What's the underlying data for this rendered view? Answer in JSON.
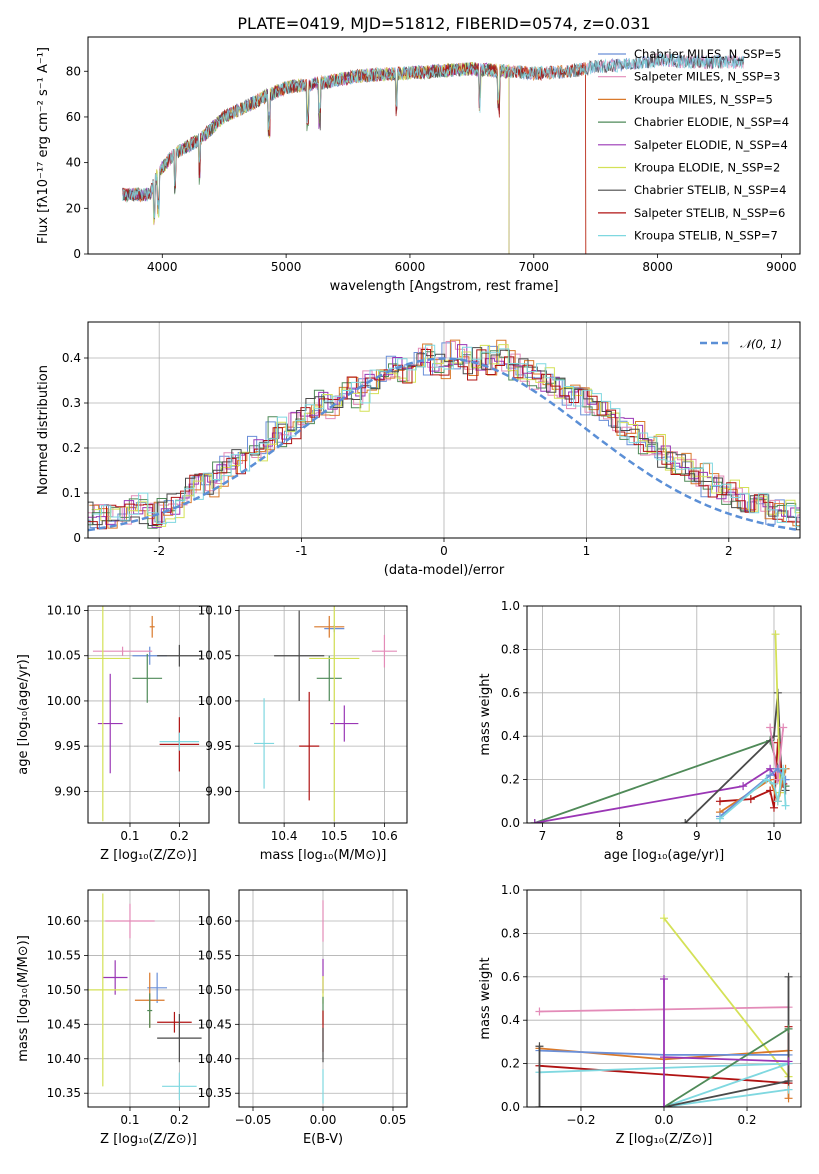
{
  "colors": {
    "chab_miles": "#6a8fd8",
    "salp_miles": "#e38bb8",
    "krou_miles": "#d9792b",
    "chab_elodie": "#4f8a58",
    "salp_elodie": "#9a36b5",
    "krou_elodie": "#d4e157",
    "chab_stelib": "#4a4a4a",
    "salp_stelib": "#b01313",
    "krou_stelib": "#7fd8e0",
    "normal": "#5b8fd6",
    "grid": "#b0b0b0"
  },
  "chart_data": [
    {
      "id": "spectrum",
      "type": "line",
      "title": "PLATE=0419, MJD=51812, FIBERID=0574, z=0.031",
      "xlabel": "wavelength [Angstrom, rest frame]",
      "ylabel": "Flux [fλ10⁻¹⁷ erg cm⁻² s⁻¹ A⁻¹]",
      "xlim": [
        3400,
        9150
      ],
      "ylim": [
        0,
        95
      ],
      "xticks": [
        4000,
        5000,
        6000,
        7000,
        8000,
        9000
      ],
      "yticks": [
        0,
        20,
        40,
        60,
        80
      ],
      "grid": false,
      "legend_position": "right",
      "series": [
        {
          "name": "Chabrier MILES, N_SSP=5",
          "color_key": "chab_miles",
          "start": 3680,
          "end": 8700
        },
        {
          "name": "Salpeter MILES, N_SSP=3",
          "color_key": "salp_miles",
          "start": 3680,
          "end": 8700
        },
        {
          "name": "Kroupa MILES, N_SSP=5",
          "color_key": "krou_miles",
          "start": 3680,
          "end": 7420
        },
        {
          "name": "Chabrier ELODIE, N_SSP=4",
          "color_key": "chab_elodie",
          "start": 3680,
          "end": 6800
        },
        {
          "name": "Salpeter ELODIE, N_SSP=4",
          "color_key": "salp_elodie",
          "start": 3680,
          "end": 6800
        },
        {
          "name": "Kroupa ELODIE, N_SSP=2",
          "color_key": "krou_elodie",
          "start": 3900,
          "end": 6800
        },
        {
          "name": "Chabrier STELIB, N_SSP=4",
          "color_key": "chab_stelib",
          "start": 3680,
          "end": 8700
        },
        {
          "name": "Salpeter STELIB, N_SSP=6",
          "color_key": "salp_stelib",
          "start": 3680,
          "end": 7420
        },
        {
          "name": "Kroupa STELIB, N_SSP=7",
          "color_key": "krou_stelib",
          "start": 3680,
          "end": 8700
        }
      ],
      "continuum": [
        [
          3680,
          26
        ],
        [
          3900,
          26
        ],
        [
          3960,
          35
        ],
        [
          4100,
          44
        ],
        [
          4300,
          50
        ],
        [
          4500,
          60
        ],
        [
          4800,
          68
        ],
        [
          5000,
          73
        ],
        [
          5300,
          75
        ],
        [
          5600,
          78
        ],
        [
          5900,
          79
        ],
        [
          6200,
          80
        ],
        [
          6500,
          81
        ],
        [
          6800,
          80
        ],
        [
          7000,
          79
        ],
        [
          7300,
          80
        ],
        [
          7500,
          82
        ],
        [
          7800,
          83
        ],
        [
          8000,
          85
        ],
        [
          8300,
          84
        ],
        [
          8700,
          84
        ]
      ]
    },
    {
      "id": "residual_hist",
      "type": "bar",
      "xlabel": "(data-model)/error",
      "ylabel": "Normed distribution",
      "xlim": [
        -2.5,
        2.5
      ],
      "ylim": [
        0,
        0.48
      ],
      "xticks": [
        -2,
        -1,
        0,
        1,
        2
      ],
      "yticks": [
        0.0,
        0.1,
        0.2,
        0.3,
        0.4
      ],
      "grid": true,
      "legend": [
        "𝒩(0, 1)"
      ],
      "legend_position": "top-right",
      "bin_width": 0.1,
      "hist_seed": [
        0.055,
        0.045,
        0.05,
        0.04,
        0.06,
        0.07,
        0.06,
        0.05,
        0.06,
        0.07,
        0.09,
        0.11,
        0.13,
        0.12,
        0.14,
        0.16,
        0.17,
        0.18,
        0.2,
        0.21,
        0.24,
        0.23,
        0.25,
        0.27,
        0.28,
        0.3,
        0.29,
        0.32,
        0.33,
        0.31,
        0.35,
        0.36,
        0.37,
        0.38,
        0.36,
        0.4,
        0.41,
        0.39,
        0.38,
        0.41,
        0.4,
        0.38,
        0.4,
        0.39,
        0.41,
        0.39,
        0.38,
        0.37,
        0.36,
        0.35,
        0.34,
        0.33,
        0.31,
        0.32,
        0.3,
        0.28,
        0.27,
        0.25,
        0.24,
        0.23,
        0.21,
        0.2,
        0.18,
        0.17,
        0.16,
        0.15,
        0.14,
        0.12,
        0.11,
        0.1,
        0.09,
        0.085,
        0.08,
        0.07,
        0.06,
        0.055,
        0.05,
        0.045,
        0.04,
        0.035
      ]
    },
    {
      "id": "age_vs_Z",
      "type": "scatter",
      "xlabel": "Z [log₁₀(Z/Z⊙)]",
      "ylabel": "age  [log₁₀(age/yr)]",
      "xlim": [
        0.015,
        0.26
      ],
      "ylim": [
        9.865,
        10.105
      ],
      "xticks": [
        0.1,
        0.2
      ],
      "xticklabels": [
        "0.1",
        "0.2"
      ],
      "yticks": [
        9.9,
        9.95,
        10.0,
        10.05,
        10.1
      ],
      "yticklabels": [
        "9.90",
        "9.95",
        "10.00",
        "10.05",
        "10.10"
      ],
      "grid": true,
      "points": [
        {
          "c": "chab_miles",
          "x": 0.14,
          "y": 10.05,
          "ex": 0.035,
          "ey": 0.01
        },
        {
          "c": "salp_miles",
          "x": 0.085,
          "y": 10.055,
          "ex": 0.06,
          "ey": 0.005
        },
        {
          "c": "krou_miles",
          "x": 0.145,
          "y": 10.082,
          "ex": 0.005,
          "ey": 0.012
        },
        {
          "c": "chab_elodie",
          "x": 0.135,
          "y": 10.025,
          "ex": 0.03,
          "ey": 0.027
        },
        {
          "c": "salp_elodie",
          "x": 0.06,
          "y": 9.975,
          "ex": 0.025,
          "ey": 0.055
        },
        {
          "c": "krou_elodie",
          "x": 0.045,
          "y": 10.047,
          "ex": 0.055,
          "ey": 0.18
        },
        {
          "c": "chab_stelib",
          "x": 0.2,
          "y": 10.05,
          "ex": 0.045,
          "ey": 0.012
        },
        {
          "c": "salp_stelib",
          "x": 0.2,
          "y": 9.952,
          "ex": 0.04,
          "ey": 0.03
        },
        {
          "c": "krou_stelib",
          "x": 0.2,
          "y": 9.955,
          "ex": 0.04,
          "ey": 0.01
        }
      ]
    },
    {
      "id": "age_vs_mass",
      "type": "scatter",
      "xlabel": "mass [log₁₀(M/M⊙)]",
      "xlim": [
        10.31,
        10.645
      ],
      "ylim": [
        9.865,
        10.105
      ],
      "xticks": [
        10.4,
        10.5,
        10.6
      ],
      "xticklabels": [
        "10.4",
        "10.5",
        "10.6"
      ],
      "yticks": [
        9.9,
        9.95,
        10.0,
        10.05,
        10.1
      ],
      "yticklabels": [
        "9.90",
        "9.95",
        "10.00",
        "10.05",
        "10.10"
      ],
      "grid": true,
      "points": [
        {
          "c": "chab_miles",
          "x": 10.5,
          "y": 10.08,
          "ex": 0.02,
          "ey": 0.004
        },
        {
          "c": "salp_miles",
          "x": 10.6,
          "y": 10.055,
          "ex": 0.025,
          "ey": 0.018
        },
        {
          "c": "krou_miles",
          "x": 10.49,
          "y": 10.082,
          "ex": 0.03,
          "ey": 0.012
        },
        {
          "c": "chab_elodie",
          "x": 10.49,
          "y": 10.025,
          "ex": 0.025,
          "ey": 0.025
        },
        {
          "c": "salp_elodie",
          "x": 10.52,
          "y": 9.975,
          "ex": 0.028,
          "ey": 0.02
        },
        {
          "c": "krou_elodie",
          "x": 10.5,
          "y": 10.047,
          "ex": 0.05,
          "ey": 0.18
        },
        {
          "c": "chab_stelib",
          "x": 10.43,
          "y": 10.05,
          "ex": 0.05,
          "ey": 0.05
        },
        {
          "c": "salp_stelib",
          "x": 10.45,
          "y": 9.95,
          "ex": 0.02,
          "ey": 0.06
        },
        {
          "c": "krou_stelib",
          "x": 10.36,
          "y": 9.953,
          "ex": 0.02,
          "ey": 0.05
        }
      ]
    },
    {
      "id": "weight_vs_age",
      "type": "line",
      "xlabel": "age  [log₁₀(age/yr)]",
      "ylabel": "mass weight",
      "xlim": [
        6.8,
        10.35
      ],
      "ylim": [
        0,
        1.0
      ],
      "xticks": [
        7,
        8,
        9,
        10
      ],
      "xticklabels": [
        "7",
        "8",
        "9",
        "10"
      ],
      "yticks": [
        0.0,
        0.2,
        0.4,
        0.6,
        0.8,
        1.0
      ],
      "yticklabels": [
        "0.0",
        "0.2",
        "0.4",
        "0.6",
        "0.8",
        "1.0"
      ],
      "grid": true,
      "series": [
        {
          "c": "chab_elodie",
          "pts": [
            [
              6.9,
              0.0
            ],
            [
              9.95,
              0.38
            ],
            [
              10.1,
              0.2
            ],
            [
              10.15,
              0.17
            ]
          ]
        },
        {
          "c": "salp_elodie",
          "pts": [
            [
              6.9,
              0.0
            ],
            [
              9.6,
              0.17
            ],
            [
              9.95,
              0.25
            ],
            [
              10.05,
              0.2
            ],
            [
              10.12,
              0.18
            ]
          ]
        },
        {
          "c": "chab_stelib",
          "pts": [
            [
              8.85,
              0.0
            ],
            [
              10.0,
              0.4
            ],
            [
              10.05,
              0.6
            ],
            [
              10.1,
              0.2
            ],
            [
              10.15,
              0.15
            ]
          ]
        },
        {
          "c": "salp_stelib",
          "pts": [
            [
              9.3,
              0.1
            ],
            [
              9.7,
              0.11
            ],
            [
              9.95,
              0.15
            ],
            [
              10.0,
              0.07
            ],
            [
              10.05,
              0.37
            ],
            [
              10.12,
              0.18
            ]
          ]
        },
        {
          "c": "krou_elodie",
          "pts": [
            [
              10.02,
              0.87
            ],
            [
              10.08,
              0.14
            ]
          ]
        },
        {
          "c": "salp_miles",
          "pts": [
            [
              9.95,
              0.44
            ],
            [
              10.05,
              0.2
            ],
            [
              10.12,
              0.44
            ]
          ]
        },
        {
          "c": "krou_miles",
          "pts": [
            [
              9.3,
              0.05
            ],
            [
              9.95,
              0.2
            ],
            [
              10.05,
              0.1
            ],
            [
              10.15,
              0.25
            ]
          ]
        },
        {
          "c": "chab_miles",
          "pts": [
            [
              9.3,
              0.03
            ],
            [
              9.95,
              0.22
            ],
            [
              10.05,
              0.25
            ],
            [
              10.15,
              0.2
            ]
          ]
        },
        {
          "c": "krou_stelib",
          "pts": [
            [
              9.3,
              0.02
            ],
            [
              9.9,
              0.2
            ],
            [
              10.0,
              0.18
            ],
            [
              10.05,
              0.1
            ],
            [
              10.12,
              0.25
            ],
            [
              10.15,
              0.08
            ]
          ]
        }
      ]
    },
    {
      "id": "mass_vs_Z",
      "type": "scatter",
      "xlabel": "Z [log₁₀(Z/Z⊙)]",
      "ylabel": "mass [log₁₀(M/M⊙)]",
      "xlim": [
        0.015,
        0.26
      ],
      "ylim": [
        10.33,
        10.645
      ],
      "xticks": [
        0.1,
        0.2
      ],
      "xticklabels": [
        "0.1",
        "0.2"
      ],
      "yticks": [
        10.35,
        10.4,
        10.45,
        10.5,
        10.55,
        10.6
      ],
      "yticklabels": [
        "10.35",
        "10.40",
        "10.45",
        "10.50",
        "10.55",
        "10.60"
      ],
      "grid": true,
      "points": [
        {
          "c": "salp_miles",
          "x": 0.1,
          "y": 10.6,
          "ex": 0.05,
          "ey": 0.025
        },
        {
          "c": "salp_elodie",
          "x": 0.07,
          "y": 10.518,
          "ex": 0.025,
          "ey": 0.025
        },
        {
          "c": "krou_elodie",
          "x": 0.045,
          "y": 10.5,
          "ex": 0.05,
          "ey": 0.14
        },
        {
          "c": "chab_miles",
          "x": 0.155,
          "y": 10.503,
          "ex": 0.02,
          "ey": 0.022
        },
        {
          "c": "krou_miles",
          "x": 0.14,
          "y": 10.485,
          "ex": 0.03,
          "ey": 0.04
        },
        {
          "c": "chab_elodie",
          "x": 0.14,
          "y": 10.47,
          "ex": 0.005,
          "ey": 0.025
        },
        {
          "c": "salp_stelib",
          "x": 0.19,
          "y": 10.453,
          "ex": 0.035,
          "ey": 0.015
        },
        {
          "c": "chab_stelib",
          "x": 0.2,
          "y": 10.43,
          "ex": 0.045,
          "ey": 0.035
        },
        {
          "c": "krou_stelib",
          "x": 0.2,
          "y": 10.36,
          "ex": 0.035,
          "ey": 0.02
        }
      ]
    },
    {
      "id": "mass_vs_ebv",
      "type": "scatter",
      "xlabel": "E(B-V)",
      "xlim": [
        -0.06,
        0.06
      ],
      "ylim": [
        10.33,
        10.645
      ],
      "xticks": [
        -0.05,
        0.0,
        0.05
      ],
      "xticklabels": [
        "−0.05",
        "0.00",
        "0.05"
      ],
      "yticks": [
        10.35,
        10.4,
        10.45,
        10.5,
        10.55,
        10.6
      ],
      "yticklabels": [
        "10.35",
        "10.40",
        "10.45",
        "10.50",
        "10.55",
        "10.60"
      ],
      "grid": true,
      "points": [
        {
          "c": "salp_miles",
          "x": 0.0,
          "y": 10.6,
          "ex": 0.0,
          "ey": 0.03
        },
        {
          "c": "salp_elodie",
          "x": 0.0,
          "y": 10.52,
          "ex": 0.0,
          "ey": 0.025
        },
        {
          "c": "krou_elodie",
          "x": 0.0,
          "y": 10.5,
          "ex": 0.0,
          "ey": 0.02
        },
        {
          "c": "chab_elodie",
          "x": 0.0,
          "y": 10.47,
          "ex": 0.0,
          "ey": 0.02
        },
        {
          "c": "salp_stelib",
          "x": 0.0,
          "y": 10.44,
          "ex": 0.0,
          "ey": 0.03
        },
        {
          "c": "chab_stelib",
          "x": 0.0,
          "y": 10.42,
          "ex": 0.0,
          "ey": 0.025
        },
        {
          "c": "krou_stelib",
          "x": 0.0,
          "y": 10.36,
          "ex": 0.0,
          "ey": 0.025
        }
      ]
    },
    {
      "id": "weight_vs_Z",
      "type": "line",
      "xlabel": "Z [log₁₀(Z/Z⊙)]",
      "ylabel": "mass weight",
      "xlim": [
        -0.33,
        0.33
      ],
      "ylim": [
        0,
        1.0
      ],
      "xticks": [
        -0.2,
        0.0,
        0.2
      ],
      "xticklabels": [
        "−0.2",
        "0.0",
        "0.2"
      ],
      "yticks": [
        0.0,
        0.2,
        0.4,
        0.6,
        0.8,
        1.0
      ],
      "yticklabels": [
        "0.0",
        "0.2",
        "0.4",
        "0.6",
        "0.8",
        "1.0"
      ],
      "grid": true,
      "series": [
        {
          "c": "salp_miles",
          "pts": [
            [
              -0.3,
              0.44
            ],
            [
              0.3,
              0.46
            ]
          ]
        },
        {
          "c": "krou_elodie",
          "pts": [
            [
              0.0,
              0.87
            ],
            [
              0.3,
              0.14
            ]
          ]
        },
        {
          "c": "krou_miles",
          "pts": [
            [
              -0.3,
              0.27
            ],
            [
              0.0,
              0.22
            ],
            [
              0.3,
              0.26
            ],
            [
              0.3,
              0.04
            ]
          ]
        },
        {
          "c": "chab_miles",
          "pts": [
            [
              -0.3,
              0.26
            ],
            [
              0.0,
              0.24
            ],
            [
              0.3,
              0.24
            ]
          ]
        },
        {
          "c": "salp_stelib",
          "pts": [
            [
              -0.3,
              0.19
            ],
            [
              0.0,
              0.15
            ],
            [
              0.3,
              0.11
            ],
            [
              0.3,
              0.37
            ]
          ]
        },
        {
          "c": "krou_stelib",
          "pts": [
            [
              -0.3,
              0.16
            ],
            [
              0.0,
              0.18
            ],
            [
              0.3,
              0.2
            ],
            [
              0.0,
              0.0
            ],
            [
              0.3,
              0.08
            ]
          ]
        },
        {
          "c": "chab_stelib",
          "pts": [
            [
              -0.3,
              0.28
            ],
            [
              -0.3,
              0.0
            ],
            [
              0.0,
              0.0
            ],
            [
              0.3,
              0.12
            ],
            [
              0.3,
              0.6
            ]
          ]
        },
        {
          "c": "chab_elodie",
          "pts": [
            [
              0.0,
              0.0
            ],
            [
              0.3,
              0.36
            ]
          ]
        },
        {
          "c": "salp_elodie",
          "pts": [
            [
              0.0,
              0.0
            ],
            [
              0.0,
              0.59
            ],
            [
              0.0,
              0.23
            ],
            [
              0.3,
              0.21
            ]
          ]
        }
      ]
    }
  ]
}
